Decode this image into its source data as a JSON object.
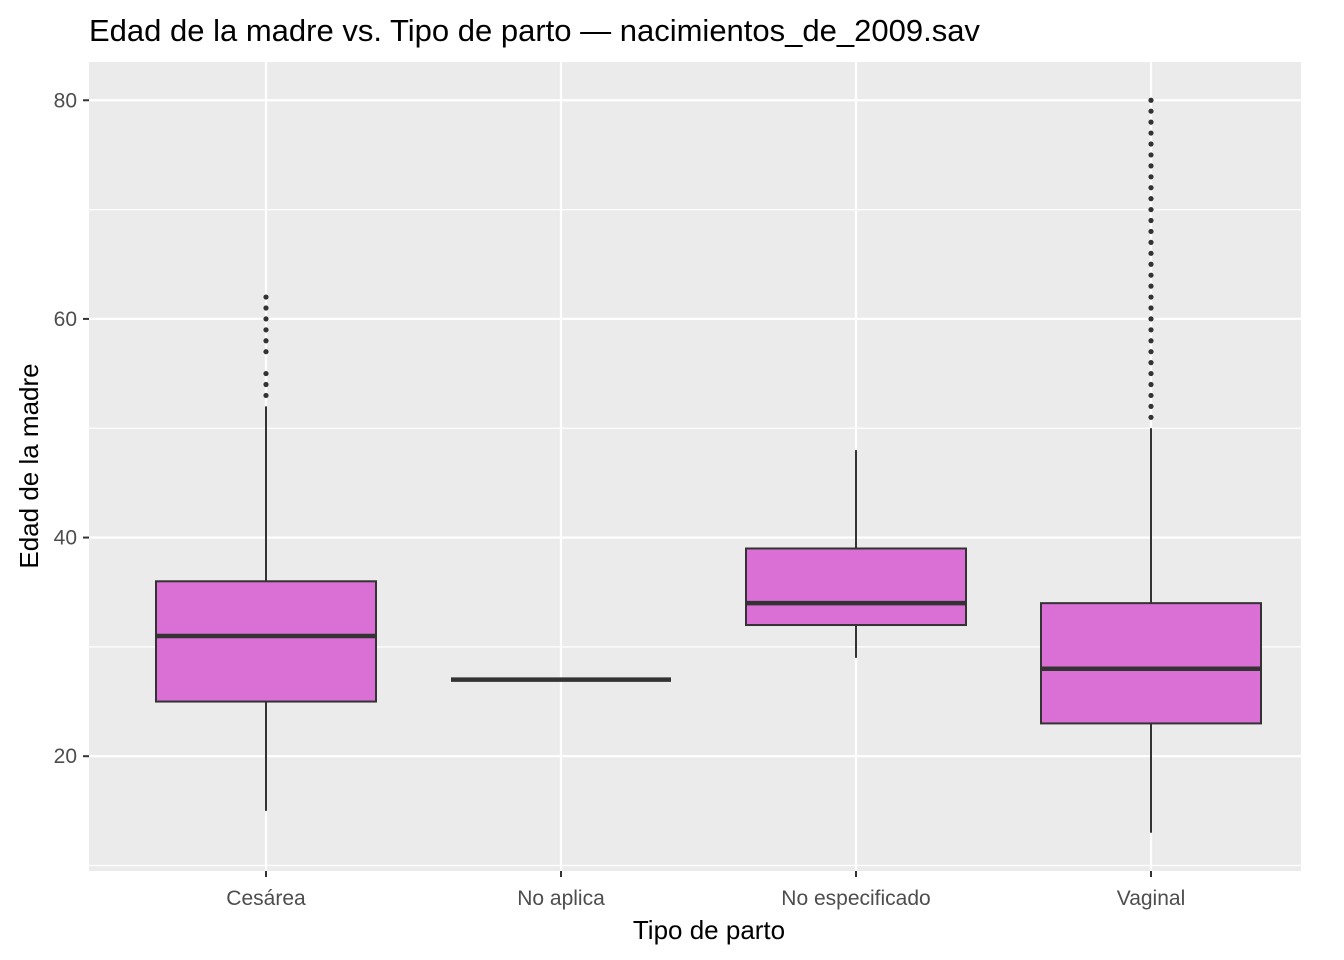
{
  "chart_data": {
    "type": "boxplot",
    "title": "Edad de la madre vs. Tipo de parto — nacimientos_de_2009.sav",
    "xlabel": "Tipo de parto",
    "ylabel": "Edad de la madre",
    "ylim": [
      9.5,
      83.5
    ],
    "yticks": [
      20,
      40,
      60,
      80
    ],
    "grid": true,
    "categories": [
      "Cesárea",
      "No aplica",
      "No especificado",
      "Vaginal"
    ],
    "boxes": [
      {
        "category": "Cesárea",
        "whisker_low": 15,
        "q1": 25,
        "median": 31,
        "q3": 36,
        "whisker_high": 52,
        "outliers": [
          53,
          54,
          55,
          57,
          58,
          59,
          60,
          61,
          62
        ]
      },
      {
        "category": "No aplica",
        "whisker_low": 27,
        "q1": 27,
        "median": 27,
        "q3": 27,
        "whisker_high": 27,
        "outliers": []
      },
      {
        "category": "No especificado",
        "whisker_low": 29,
        "q1": 32,
        "median": 34,
        "q3": 39,
        "whisker_high": 48,
        "outliers": []
      },
      {
        "category": "Vaginal",
        "whisker_low": 13,
        "q1": 23,
        "median": 28,
        "q3": 34,
        "whisker_high": 50,
        "outliers": [
          51,
          52,
          53,
          54,
          55,
          56,
          57,
          58,
          59,
          60,
          61,
          62,
          63,
          64,
          65,
          66,
          67,
          68,
          69,
          70,
          71,
          72,
          73,
          74,
          75,
          76,
          77,
          78,
          79,
          80
        ]
      }
    ],
    "colors": {
      "box_fill": "#da70d6",
      "box_stroke": "#333333",
      "panel_bg": "#ebebeb",
      "grid": "#ffffff",
      "tick_text": "#4d4d4d"
    }
  }
}
